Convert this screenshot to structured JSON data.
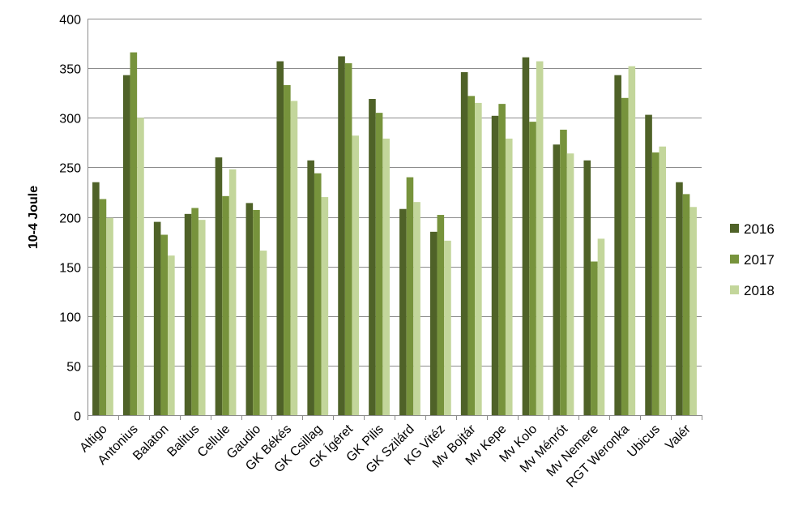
{
  "chart_data": {
    "type": "bar",
    "title": "",
    "xlabel": "",
    "ylabel": "10-4 Joule",
    "ylim": [
      0,
      400
    ],
    "yticks": [
      0,
      50,
      100,
      150,
      200,
      250,
      300,
      350,
      400
    ],
    "grid": "horizontal",
    "legend_position": "right",
    "categories": [
      "Altigo",
      "Antonius",
      "Balaton",
      "Balitus",
      "Cellule",
      "Gaudio",
      "GK Békés",
      "GK Csillag",
      "GK Ígéret",
      "GK Pilis",
      "GK Szilárd",
      "KG Vitéz",
      "Mv Bojtár",
      "Mv Kepe",
      "Mv Kolo",
      "Mv Ménrót",
      "Mv Nemere",
      "RGT Weronka",
      "Ubicus",
      "Valér"
    ],
    "series": [
      {
        "name": "2016",
        "color": "#4F6228",
        "values": [
          235,
          343,
          195,
          203,
          260,
          214,
          357,
          257,
          362,
          319,
          208,
          185,
          346,
          302,
          361,
          273,
          257,
          343,
          303,
          235
        ]
      },
      {
        "name": "2017",
        "color": "#77933C",
        "values": [
          218,
          366,
          182,
          209,
          221,
          207,
          333,
          244,
          355,
          305,
          240,
          202,
          322,
          314,
          296,
          288,
          155,
          320,
          265,
          223
        ]
      },
      {
        "name": "2018",
        "color": "#C3D69B",
        "values": [
          199,
          300,
          161,
          197,
          248,
          166,
          317,
          220,
          282,
          279,
          215,
          176,
          315,
          279,
          357,
          264,
          178,
          352,
          271,
          210
        ]
      }
    ]
  }
}
